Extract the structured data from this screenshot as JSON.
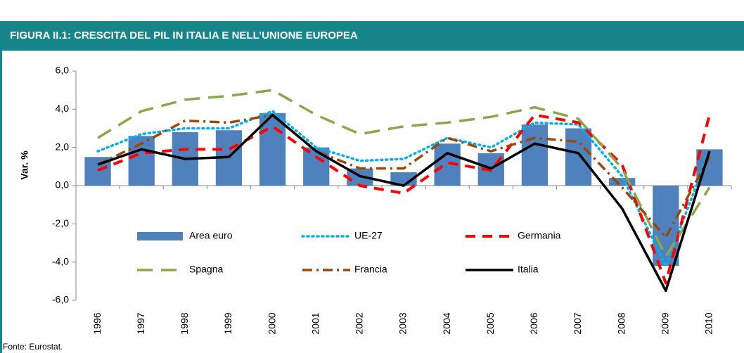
{
  "chart_data": {
    "type": "combo",
    "title": "FIGURA II.1: CRESCITA DEL PIL IN ITALIA E NELL’UNIONE EUROPEA",
    "y_label": "Var. %",
    "source": "Fonte: Eurostat.",
    "categories": [
      "1996",
      "1997",
      "1998",
      "1999",
      "2000",
      "2001",
      "2002",
      "2003",
      "2004",
      "2005",
      "2006",
      "2007",
      "2008",
      "2009",
      "2010"
    ],
    "ylim": [
      -6,
      6
    ],
    "yticks": [
      {
        "value": 6,
        "label": "6,0"
      },
      {
        "value": 4,
        "label": "4,0"
      },
      {
        "value": 2,
        "label": "2,0"
      },
      {
        "value": 0,
        "label": "0,0"
      },
      {
        "value": -2,
        "label": "-2,0"
      },
      {
        "value": -4,
        "label": "-4,0"
      },
      {
        "value": -6,
        "label": "-6,0"
      }
    ],
    "series": [
      {
        "name": "Area euro",
        "type": "bar",
        "color": "#4f81bd",
        "values": [
          1.5,
          2.6,
          2.8,
          2.9,
          3.8,
          2.0,
          0.9,
          0.7,
          2.2,
          1.7,
          3.2,
          3.0,
          0.4,
          -4.2,
          1.9
        ]
      },
      {
        "name": "UE-27",
        "type": "line",
        "style": "dotted",
        "color": "#00b0f0",
        "values": [
          1.8,
          2.7,
          3.0,
          3.0,
          3.9,
          2.0,
          1.3,
          1.4,
          2.5,
          2.0,
          3.3,
          3.2,
          0.5,
          -4.2,
          1.8
        ]
      },
      {
        "name": "Germania",
        "type": "line",
        "style": "dashed",
        "color": "#ff0000",
        "values": [
          0.8,
          1.7,
          1.9,
          1.9,
          3.1,
          1.5,
          0.0,
          -0.4,
          1.2,
          0.8,
          3.7,
          3.3,
          1.1,
          -5.1,
          3.7
        ]
      },
      {
        "name": "Spagna",
        "type": "line",
        "style": "longdash",
        "color": "#8aa84a",
        "values": [
          2.5,
          3.9,
          4.5,
          4.7,
          5.0,
          3.7,
          2.7,
          3.1,
          3.3,
          3.6,
          4.1,
          3.5,
          0.9,
          -3.7,
          -0.1
        ]
      },
      {
        "name": "Francia",
        "type": "line",
        "style": "dashdot",
        "color": "#984807",
        "values": [
          1.1,
          2.2,
          3.4,
          3.3,
          3.7,
          1.8,
          0.9,
          0.9,
          2.5,
          1.8,
          2.5,
          2.3,
          -0.1,
          -2.7,
          1.5
        ]
      },
      {
        "name": "Italia",
        "type": "line",
        "style": "solid",
        "color": "#000000",
        "values": [
          1.1,
          1.9,
          1.4,
          1.5,
          3.7,
          1.8,
          0.5,
          0.0,
          1.7,
          0.9,
          2.2,
          1.7,
          -1.2,
          -5.5,
          1.8
        ]
      }
    ]
  }
}
